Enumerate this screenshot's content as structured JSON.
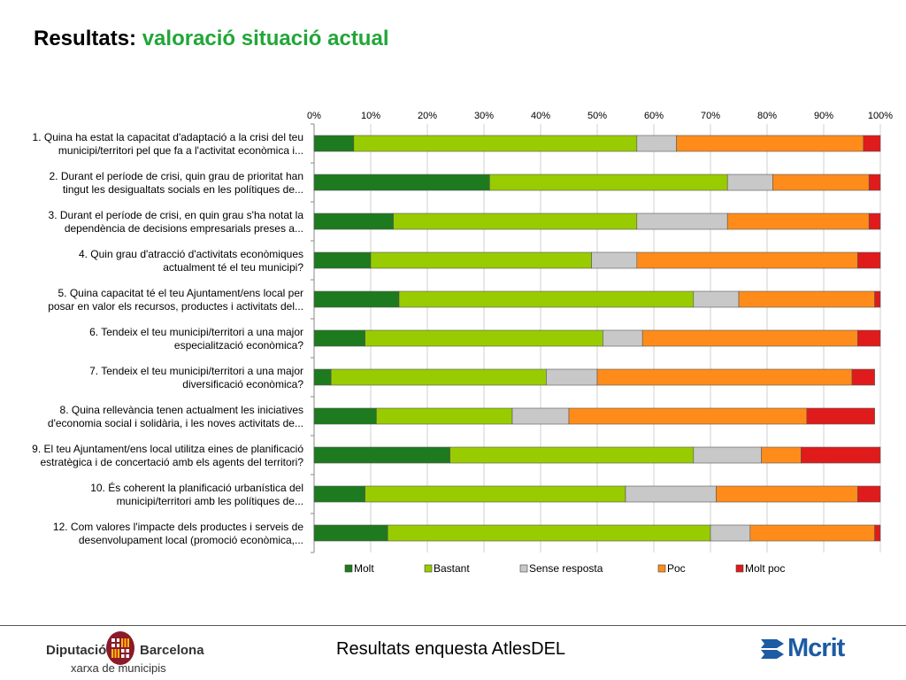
{
  "header": {
    "title_prefix": "Resultats:",
    "title_main": "valoració situació actual"
  },
  "colors": {
    "Molt": "#1e7a1e",
    "Bastant": "#99cc00",
    "Sense resposta": "#c8c8c8",
    "Poc": "#ff8c1a",
    "Molt poc": "#e01b1b",
    "title_accent": "#22a638"
  },
  "chart_data": {
    "type": "bar",
    "orientation": "horizontal",
    "stacked": "percent",
    "xlim": [
      0,
      100
    ],
    "x_ticks": [
      "0%",
      "10%",
      "20%",
      "30%",
      "40%",
      "50%",
      "60%",
      "70%",
      "80%",
      "90%",
      "100%"
    ],
    "grid": true,
    "legend_position": "bottom",
    "categories": [
      [
        "1. Quina ha estat la capacitat d'adaptació a la crisi del teu",
        "municipi/territori pel que fa a l'activitat econòmica i..."
      ],
      [
        "2. Durant el període de crisi, quin grau de prioritat han",
        "tingut les desigualtats socials en les polítiques de..."
      ],
      [
        "3. Durant el període de crisi, en quin grau s'ha notat la",
        "dependència de decisions empresarials preses a..."
      ],
      [
        "4. Quin grau d'atracció d'activitats econòmiques",
        "actualment té el teu municipi?"
      ],
      [
        "5. Quina capacitat té el teu Ajuntament/ens local per",
        "posar en valor els recursos, productes i activitats del..."
      ],
      [
        "6. Tendeix el teu municipi/territori a una major",
        "especialització econòmica?"
      ],
      [
        "7. Tendeix el teu municipi/territori a una major",
        "diversificació econòmica?"
      ],
      [
        "8. Quina rellevància tenen actualment les iniciatives",
        "d'economia social i solidària, i les noves activitats de..."
      ],
      [
        "9. El teu Ajuntament/ens local utilitza eines de planificació",
        "estratègica i de concertació amb els agents del territori?"
      ],
      [
        "10. És coherent la planificació urbanística del",
        "municipi/territori amb les polítiques de..."
      ],
      [
        "12. Com valores l'impacte dels productes i serveis de",
        "desenvolupament local (promoció econòmica,..."
      ]
    ],
    "series": [
      {
        "name": "Molt",
        "values": [
          7,
          31,
          14,
          10,
          15,
          9,
          3,
          11,
          24,
          9,
          13
        ]
      },
      {
        "name": "Bastant",
        "values": [
          50,
          42,
          43,
          39,
          52,
          42,
          38,
          24,
          43,
          46,
          57
        ]
      },
      {
        "name": "Sense resposta",
        "values": [
          7,
          8,
          16,
          8,
          8,
          7,
          9,
          10,
          12,
          16,
          7
        ]
      },
      {
        "name": "Poc",
        "values": [
          33,
          17,
          25,
          39,
          24,
          38,
          45,
          42,
          7,
          25,
          22
        ]
      },
      {
        "name": "Molt poc",
        "values": [
          3,
          2,
          2,
          4,
          1,
          4,
          4,
          12,
          14,
          4,
          1
        ]
      }
    ]
  },
  "footer": {
    "center_text": "Resultats enquesta AtlesDEL",
    "logo_left_name_1": "Diputació",
    "logo_left_name_2": "Barcelona",
    "logo_left_sub": "xarxa de municipis",
    "logo_right_text": "Mcrit"
  }
}
